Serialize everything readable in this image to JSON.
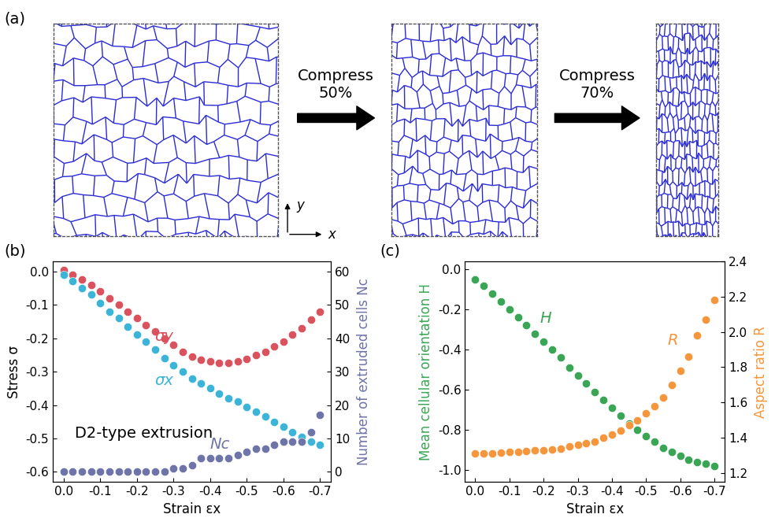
{
  "diagram": {
    "label": "(a)",
    "steps": [
      "Compress\n50%",
      "Compress\n70%"
    ],
    "axes": {
      "x": "x",
      "y": "y"
    }
  },
  "chart_data": [
    {
      "type": "scatter",
      "title": "(b)",
      "xlabel": "Strain εx",
      "ylabel": "Stress σ",
      "y2label": "Number of extruded cells Nc",
      "annotations": [
        {
          "text": "D2-type extrusion"
        }
      ],
      "x": [
        0.0,
        -0.025,
        -0.05,
        -0.075,
        -0.1,
        -0.125,
        -0.15,
        -0.175,
        -0.2,
        -0.225,
        -0.25,
        -0.275,
        -0.3,
        -0.325,
        -0.35,
        -0.375,
        -0.4,
        -0.425,
        -0.45,
        -0.475,
        -0.5,
        -0.525,
        -0.55,
        -0.575,
        -0.6,
        -0.625,
        -0.65,
        -0.675,
        -0.7
      ],
      "xlim": [
        0.03,
        -0.73
      ],
      "xticks": [
        0.0,
        -0.1,
        -0.2,
        -0.3,
        -0.4,
        -0.5,
        -0.6,
        -0.7
      ],
      "ylim": [
        -0.63,
        0.03
      ],
      "yticks": [
        0.0,
        -0.1,
        -0.2,
        -0.3,
        -0.4,
        -0.5,
        -0.6
      ],
      "y2lim": [
        -3,
        63
      ],
      "y2ticks": [
        0,
        10,
        20,
        30,
        40,
        50,
        60
      ],
      "series": [
        {
          "name": "σy",
          "color": "#d9525e",
          "marker": "circle",
          "values": [
            0.005,
            -0.01,
            -0.025,
            -0.04,
            -0.06,
            -0.08,
            -0.1,
            -0.12,
            -0.14,
            -0.16,
            -0.18,
            -0.2,
            -0.22,
            -0.24,
            -0.255,
            -0.265,
            -0.27,
            -0.275,
            -0.275,
            -0.27,
            -0.262,
            -0.25,
            -0.24,
            -0.225,
            -0.21,
            -0.19,
            -0.17,
            -0.145,
            -0.12
          ]
        },
        {
          "name": "σx",
          "color": "#3cb4d8",
          "marker": "circle",
          "values": [
            -0.01,
            -0.03,
            -0.05,
            -0.07,
            -0.095,
            -0.12,
            -0.14,
            -0.165,
            -0.19,
            -0.21,
            -0.235,
            -0.26,
            -0.28,
            -0.3,
            -0.32,
            -0.335,
            -0.35,
            -0.365,
            -0.38,
            -0.39,
            -0.405,
            -0.42,
            -0.435,
            -0.45,
            -0.465,
            -0.48,
            -0.495,
            -0.51,
            -0.52
          ]
        },
        {
          "name": "Nc",
          "color": "#6e74a8",
          "marker": "circle",
          "axis": "y2",
          "values": [
            0,
            0,
            0,
            0,
            0,
            0,
            0,
            0,
            0,
            0,
            0,
            0,
            1,
            1,
            2,
            4,
            4,
            4,
            4,
            5,
            6,
            7,
            7,
            8,
            9,
            9,
            9,
            12,
            17
          ]
        }
      ]
    },
    {
      "type": "scatter",
      "title": "(c)",
      "xlabel": "Strain εx",
      "ylabel": "Mean cellular orientation H",
      "y2label": "Aspect ratio R",
      "x": [
        0.0,
        -0.025,
        -0.05,
        -0.075,
        -0.1,
        -0.125,
        -0.15,
        -0.175,
        -0.2,
        -0.225,
        -0.25,
        -0.275,
        -0.3,
        -0.325,
        -0.35,
        -0.375,
        -0.4,
        -0.425,
        -0.45,
        -0.475,
        -0.5,
        -0.525,
        -0.55,
        -0.575,
        -0.6,
        -0.625,
        -0.65,
        -0.675,
        -0.7
      ],
      "xlim": [
        0.03,
        -0.73
      ],
      "xticks": [
        0.0,
        -0.1,
        -0.2,
        -0.3,
        -0.4,
        -0.5,
        -0.6,
        -0.7
      ],
      "ylim": [
        -1.06,
        0.04
      ],
      "yticks": [
        0.0,
        -0.2,
        -0.4,
        -0.6,
        -0.8,
        -1.0
      ],
      "y2lim": [
        1.15,
        2.4
      ],
      "y2ticks": [
        1.2,
        1.4,
        1.6,
        1.8,
        2.0,
        2.2,
        2.4
      ],
      "series": [
        {
          "name": "H",
          "color": "#3aa655",
          "marker": "circle",
          "values": [
            -0.05,
            -0.08,
            -0.12,
            -0.16,
            -0.2,
            -0.24,
            -0.28,
            -0.32,
            -0.36,
            -0.4,
            -0.44,
            -0.49,
            -0.53,
            -0.57,
            -0.61,
            -0.65,
            -0.69,
            -0.73,
            -0.77,
            -0.8,
            -0.83,
            -0.86,
            -0.89,
            -0.91,
            -0.93,
            -0.95,
            -0.96,
            -0.97,
            -0.98
          ]
        },
        {
          "name": "R",
          "color": "#f5963c",
          "marker": "circle",
          "axis": "y2",
          "values": [
            1.31,
            1.31,
            1.31,
            1.315,
            1.32,
            1.32,
            1.325,
            1.33,
            1.33,
            1.335,
            1.34,
            1.35,
            1.36,
            1.37,
            1.38,
            1.4,
            1.42,
            1.44,
            1.47,
            1.5,
            1.54,
            1.58,
            1.63,
            1.7,
            1.78,
            1.86,
            1.98,
            2.07,
            2.18
          ]
        }
      ]
    }
  ]
}
